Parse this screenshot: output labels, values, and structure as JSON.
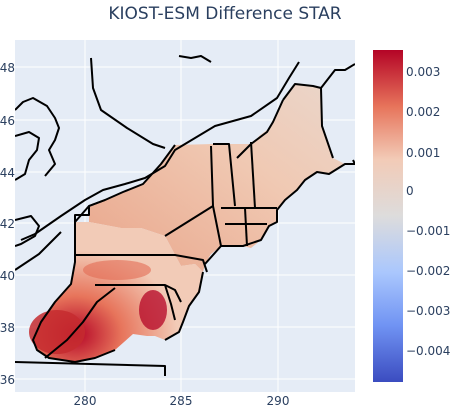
{
  "title": "KIOST-ESM Difference STAR",
  "axes": {
    "y_ticks": [
      "36",
      "38",
      "40",
      "42",
      "44",
      "46",
      "48"
    ],
    "x_ticks": [
      "280",
      "285",
      "290"
    ]
  },
  "colorbar": {
    "ticks": [
      "0.003",
      "0.002",
      "0.001",
      "0",
      "−0.001",
      "−0.002",
      "−0.003",
      "−0.004"
    ],
    "colors": [
      "#b40426",
      "#e7745b",
      "#f2cbb7",
      "#dddcdc",
      "#aac7fd",
      "#7093f3",
      "#3b4cc0"
    ]
  }
}
